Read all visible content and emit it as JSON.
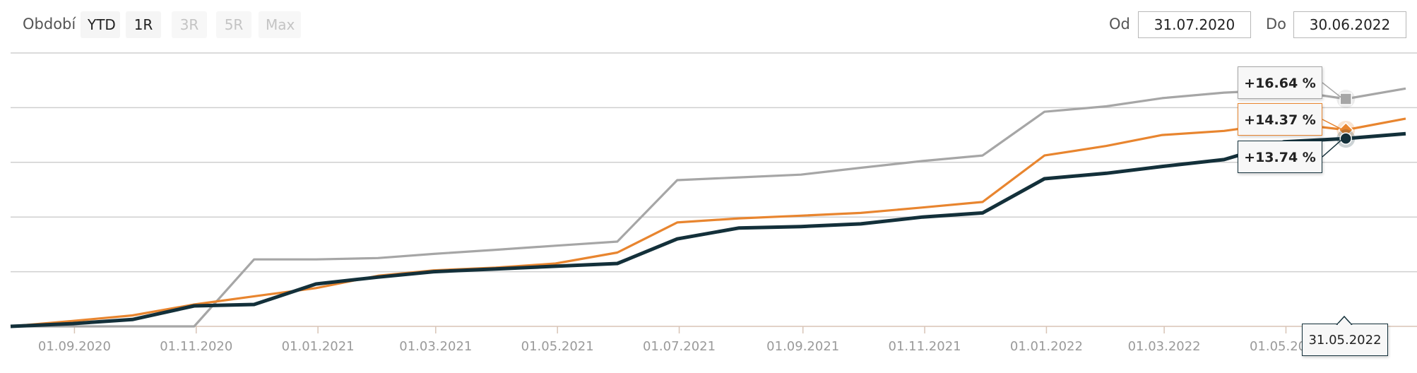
{
  "toolbar": {
    "range_label": "Období",
    "buttons": [
      {
        "label": "YTD",
        "state": "active"
      },
      {
        "label": "1R",
        "state": "active"
      },
      {
        "label": "3R",
        "state": "disabled"
      },
      {
        "label": "5R",
        "state": "disabled"
      },
      {
        "label": "Max",
        "state": "disabled"
      }
    ],
    "from_label": "Od",
    "from_value": "31.07.2020",
    "to_label": "Do",
    "to_value": "30.06.2022"
  },
  "chart_data": {
    "type": "line",
    "x_tick_labels": [
      "01.09.2020",
      "01.11.2020",
      "01.01.2021",
      "01.03.2021",
      "01.05.2021",
      "01.07.2021",
      "01.09.2021",
      "01.11.2021",
      "01.01.2022",
      "01.03.2022",
      "01.05.2022"
    ],
    "x": [
      "2020-07-31",
      "2020-08-31",
      "2020-09-30",
      "2020-10-31",
      "2020-11-30",
      "2020-12-31",
      "2021-01-31",
      "2021-02-28",
      "2021-03-31",
      "2021-04-30",
      "2021-05-31",
      "2021-06-30",
      "2021-07-31",
      "2021-08-31",
      "2021-09-30",
      "2021-10-31",
      "2021-11-30",
      "2021-12-31",
      "2022-01-31",
      "2022-02-28",
      "2022-03-31",
      "2022-04-30",
      "2022-05-31",
      "2022-06-30"
    ],
    "y_range": [
      0,
      20
    ],
    "grid": true,
    "series": [
      {
        "color": "#a6a6a6",
        "marker": "square",
        "values": [
          0,
          0,
          0,
          0,
          4.9,
          4.9,
          5.0,
          5.3,
          5.6,
          5.9,
          6.2,
          10.7,
          10.9,
          11.1,
          11.6,
          12.1,
          12.5,
          15.7,
          16.1,
          16.7,
          17.1,
          17.3,
          16.64,
          17.4
        ]
      },
      {
        "color": "#e8852f",
        "marker": "diamond",
        "values": [
          0,
          0.4,
          0.8,
          1.6,
          2.2,
          2.8,
          3.7,
          4.1,
          4.3,
          4.6,
          5.4,
          7.6,
          7.9,
          8.1,
          8.3,
          8.7,
          9.1,
          12.5,
          13.2,
          14.0,
          14.3,
          14.9,
          14.37,
          15.2
        ]
      },
      {
        "color": "#13303a",
        "marker": "circle",
        "values": [
          0,
          0.2,
          0.5,
          1.5,
          1.6,
          3.1,
          3.6,
          4.0,
          4.2,
          4.4,
          4.6,
          6.4,
          7.2,
          7.3,
          7.5,
          8.0,
          8.3,
          10.8,
          11.2,
          11.7,
          12.2,
          13.5,
          13.74,
          14.1
        ]
      }
    ],
    "tooltip": {
      "date": "31.05.2022",
      "values": [
        "+16.64 %",
        "+14.37 %",
        "+13.74 %"
      ]
    }
  }
}
